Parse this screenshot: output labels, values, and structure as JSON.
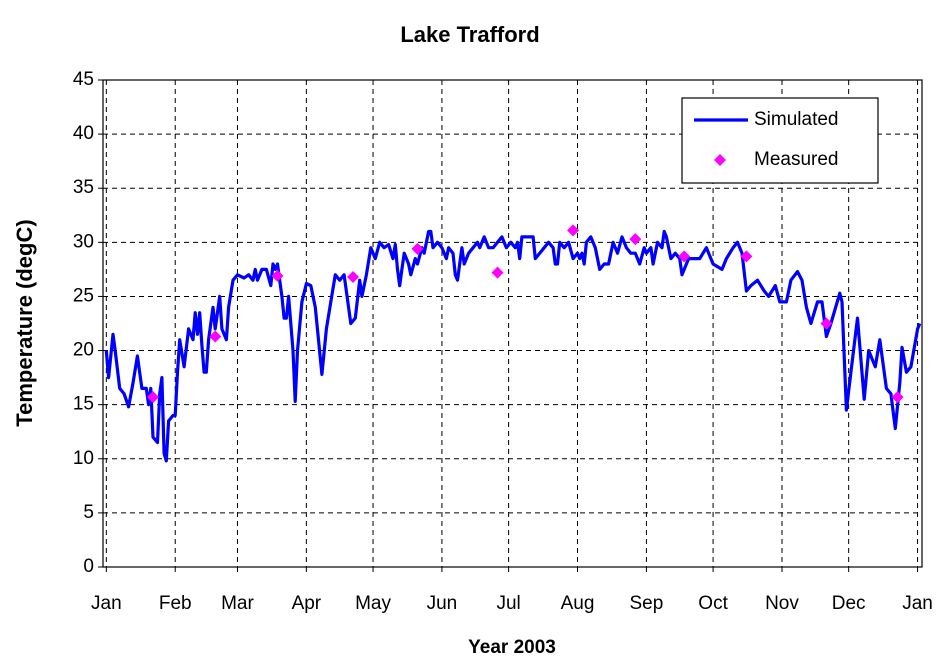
{
  "chart_data": {
    "type": "line",
    "title": "Lake Trafford",
    "xlabel": "Year 2003",
    "ylabel": "Temperature (degC)",
    "xlim": [
      -1.5,
      367
    ],
    "ylim": [
      0,
      45
    ],
    "xticks": [
      {
        "value": 0,
        "label": "Jan"
      },
      {
        "value": 31,
        "label": "Feb"
      },
      {
        "value": 59,
        "label": "Mar"
      },
      {
        "value": 90,
        "label": "Apr"
      },
      {
        "value": 120,
        "label": "May"
      },
      {
        "value": 151,
        "label": "Jun"
      },
      {
        "value": 181,
        "label": "Jul"
      },
      {
        "value": 212,
        "label": "Aug"
      },
      {
        "value": 243,
        "label": "Sep"
      },
      {
        "value": 273,
        "label": "Oct"
      },
      {
        "value": 304,
        "label": "Nov"
      },
      {
        "value": 334,
        "label": "Dec"
      },
      {
        "value": 365,
        "label": "Jan"
      }
    ],
    "yticks": [
      0,
      5,
      10,
      15,
      20,
      25,
      30,
      35,
      40,
      45
    ],
    "grid": true,
    "legend": "upper right",
    "series": [
      {
        "name": "Simulated",
        "color": "#0000ff",
        "marker": "none",
        "x": [
          0,
          1,
          3,
          4,
          6,
          8,
          10,
          12,
          14,
          16,
          18,
          19,
          20,
          21,
          23,
          24,
          25,
          26,
          27,
          28,
          30,
          31,
          32,
          33,
          35,
          37,
          39,
          40,
          41,
          42,
          43,
          44,
          45,
          46,
          48,
          49,
          51,
          52,
          54,
          55,
          57,
          59,
          62,
          64,
          66,
          67,
          68,
          70,
          72,
          74,
          75,
          76,
          77,
          79,
          80,
          81,
          82,
          84,
          85,
          86,
          88,
          90,
          92,
          94,
          97,
          99,
          101,
          103,
          105,
          107,
          110,
          112,
          114,
          115,
          117,
          119,
          121,
          123,
          125,
          127,
          129,
          130,
          131,
          132,
          133,
          134,
          136,
          137,
          139,
          140,
          142,
          143,
          145,
          146,
          147,
          149,
          151,
          153,
          154,
          156,
          157,
          158,
          160,
          161,
          163,
          165,
          167,
          168,
          170,
          172,
          174,
          176,
          178,
          180,
          182,
          184,
          185,
          186,
          187,
          189,
          192,
          193,
          195,
          197,
          199,
          201,
          202,
          203,
          204,
          206,
          208,
          210,
          212,
          213,
          214,
          215,
          216,
          218,
          220,
          221,
          222,
          224,
          226,
          228,
          230,
          232,
          234,
          236,
          238,
          240,
          242,
          243,
          245,
          246,
          248,
          250,
          251,
          252,
          254,
          256,
          258,
          259,
          260,
          262,
          264,
          267,
          270,
          273,
          277,
          279,
          282,
          284,
          286,
          288,
          290,
          293,
          296,
          298,
          301,
          303,
          306,
          308,
          311,
          313,
          315,
          317,
          320,
          322,
          324,
          326,
          330,
          331,
          333,
          335,
          338,
          341,
          343,
          346,
          348,
          351,
          353,
          355,
          357,
          358,
          360,
          362,
          365,
          366
        ],
        "values": [
          20,
          17.5,
          21.5,
          20,
          16.5,
          16,
          14.8,
          17,
          19.5,
          16.5,
          16.5,
          15,
          16.5,
          12,
          11.5,
          16,
          17.5,
          10.5,
          9.8,
          13.5,
          14,
          14,
          18,
          21,
          18.5,
          22,
          21,
          23.5,
          21.5,
          23.5,
          20.5,
          18,
          18,
          21,
          24,
          22,
          25,
          22,
          21,
          24,
          26.5,
          27,
          26.7,
          27,
          26.5,
          27.5,
          26.5,
          27.5,
          27.5,
          26,
          28,
          27.5,
          28,
          25,
          23,
          23,
          25,
          20,
          15.3,
          20,
          24.5,
          26.2,
          26,
          24,
          17.8,
          22,
          24.5,
          27,
          26.5,
          27,
          22.5,
          23,
          26.5,
          25,
          27,
          29.5,
          28.5,
          30,
          29.5,
          29.8,
          28.5,
          29.8,
          27.5,
          26,
          27.5,
          29,
          28,
          27,
          28.5,
          28,
          29.5,
          29,
          31,
          31,
          29.5,
          30,
          29.5,
          28.5,
          29.5,
          29,
          27,
          26.5,
          29.5,
          28,
          29,
          29.5,
          30,
          29.5,
          30.5,
          29.5,
          29.5,
          30,
          30.5,
          29.5,
          30,
          29.5,
          30,
          28.5,
          30.5,
          30.5,
          30.5,
          28.5,
          29,
          29.5,
          30,
          29.5,
          28,
          28,
          30,
          29.5,
          30,
          28.5,
          29,
          28.5,
          29,
          28,
          30,
          30.5,
          29.5,
          28.5,
          27.5,
          28,
          28,
          30,
          29,
          30.5,
          29.5,
          29,
          29,
          28,
          29.5,
          29,
          29.5,
          28,
          30,
          29.5,
          31,
          30.5,
          28.5,
          29,
          28.5,
          27,
          27.5,
          28.5,
          28.5,
          28.5,
          29.5,
          28,
          27.5,
          28.5,
          29.5,
          30,
          29,
          25.5,
          26,
          26.5,
          25.5,
          25,
          26,
          24.5,
          24.5,
          26.5,
          27.3,
          26.5,
          24,
          22.5,
          24.5,
          24.5,
          21.3,
          22.5,
          25.3,
          24.5,
          14.5,
          18,
          23,
          15.5,
          20,
          18.5,
          21,
          16.5,
          16,
          12.8,
          17,
          20.3,
          18,
          18.5,
          22,
          22.5
        ]
      },
      {
        "name": "Measured",
        "color": "#ff00ff",
        "marker": "diamond",
        "x": [
          21,
          49,
          77,
          111,
          140,
          176,
          210,
          238,
          260,
          288,
          324,
          356
        ],
        "values": [
          15.7,
          21.3,
          26.9,
          26.8,
          29.4,
          27.2,
          31.1,
          30.3,
          28.7,
          28.7,
          22.5,
          15.7
        ]
      }
    ]
  }
}
